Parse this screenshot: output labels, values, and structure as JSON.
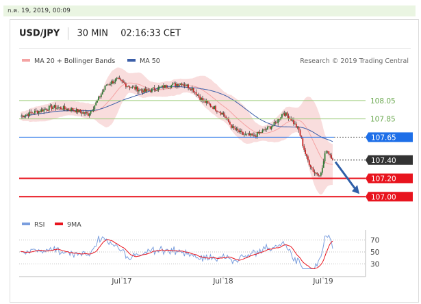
{
  "date_label": "ก.ค. 19, 2019, 00:09",
  "header": {
    "symbol": "USD/JPY",
    "interval": "30 MIN",
    "time": "02:16:33 CET"
  },
  "legend": {
    "ma20": "MA 20 + Bollinger Bands",
    "ma50": "MA 50",
    "ma20_color": "#f4a3a3",
    "ma50_color": "#3b5ea8",
    "credit": "Research © 2019 Trading Central"
  },
  "chart_data": [
    {
      "type": "line",
      "subtype": "candlestick",
      "x_labels": [
        "Jul 17",
        "Jul 18",
        "Jul 19"
      ],
      "ylim": [
        106.92,
        108.4
      ],
      "candles": [],
      "levels": [
        {
          "value": 108.05,
          "label": "108.05",
          "kind": "resistance",
          "color": "#9ccc7a"
        },
        {
          "value": 107.85,
          "label": "107.85",
          "kind": "resistance",
          "color": "#9ccc7a"
        },
        {
          "value": 107.65,
          "label": "107.65",
          "kind": "pivot",
          "color": "#1e6fe8"
        },
        {
          "value": 107.4,
          "label": "107.40",
          "kind": "last",
          "color": "#333333"
        },
        {
          "value": 107.2,
          "label": "107.20",
          "kind": "support",
          "color": "#e8141e"
        },
        {
          "value": 107.0,
          "label": "107.00",
          "kind": "support",
          "color": "#e8141e"
        }
      ],
      "arrow": {
        "from": 107.38,
        "to": 107.03,
        "color": "#2f5fa8"
      }
    },
    {
      "type": "line",
      "legend": [
        "RSI",
        "9MA"
      ],
      "series_colors": [
        "#7a9ede",
        "#e8141e"
      ],
      "y_ticks": [
        70,
        50,
        30
      ],
      "ylim": [
        18,
        82
      ],
      "x_labels": [
        "Jul 17",
        "Jul 18",
        "Jul 19"
      ]
    }
  ]
}
